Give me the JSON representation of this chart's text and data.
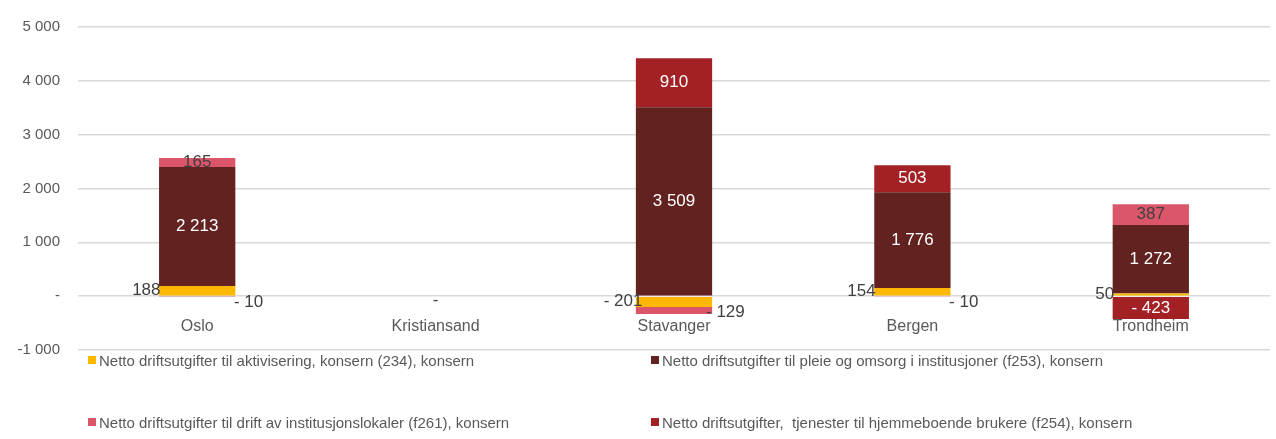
{
  "chart_data": {
    "type": "bar",
    "stacked": true,
    "categories": [
      "Oslo",
      "Kristiansand",
      "Stavanger",
      "Bergen",
      "Trondheim"
    ],
    "series": [
      {
        "name": "Netto driftsutgifter til aktivisering, konsern (234), konsern",
        "color": "#ffb800",
        "values": [
          188,
          0,
          -201,
          154,
          50
        ],
        "value_labels": [
          "188",
          "-",
          "- 201",
          "154",
          "50"
        ]
      },
      {
        "name": "Netto driftsutgifter til pleie og omsorg i institusjoner (f253), konsern",
        "color": "#612220",
        "values": [
          2213,
          null,
          3509,
          1776,
          1272
        ],
        "value_labels": [
          "2 213",
          null,
          "3 509",
          "1 776",
          "1 272"
        ]
      },
      {
        "name": "Netto driftsutgifter til drift av institusjonslokaler (f261), konsern",
        "color": "#dc566a",
        "values": [
          165,
          null,
          -129,
          -10,
          387
        ],
        "value_labels": [
          "165",
          null,
          "- 129",
          "- 10",
          "387"
        ]
      },
      {
        "name": "Netto driftsutgifter,  tjenester til hjemmeboende brukere (f254), konsern",
        "color": "#a32024",
        "values": [
          -10,
          null,
          910,
          503,
          -423
        ],
        "value_labels": [
          "- 10",
          null,
          "910",
          "503",
          "- 423"
        ]
      }
    ],
    "ylim": [
      -1000,
      5000
    ],
    "yticks": [
      {
        "value": -1000,
        "label": "-1 000"
      },
      {
        "value": 0,
        "label": "-"
      },
      {
        "value": 1000,
        "label": "1 000"
      },
      {
        "value": 2000,
        "label": "2 000"
      },
      {
        "value": 3000,
        "label": "3 000"
      },
      {
        "value": 4000,
        "label": "4 000"
      },
      {
        "value": 5000,
        "label": "5 000"
      }
    ],
    "grid": "y",
    "legend": "bottom"
  }
}
